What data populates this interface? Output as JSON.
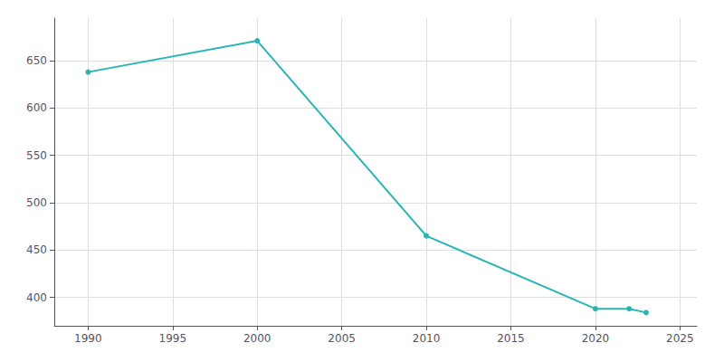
{
  "chart_data": {
    "type": "line",
    "x": [
      1990,
      2000,
      2010,
      2020,
      2022,
      2023
    ],
    "values": [
      638,
      671,
      465,
      388,
      388,
      384
    ],
    "color": "#2ab5b5",
    "marker": "circle",
    "xlim": [
      1988,
      2026
    ],
    "xticks": [
      1990,
      1995,
      2000,
      2005,
      2010,
      2015,
      2020,
      2025
    ],
    "ylim": [
      370,
      695
    ],
    "yticks": [
      400,
      450,
      500,
      550,
      600,
      650
    ],
    "grid": true
  }
}
